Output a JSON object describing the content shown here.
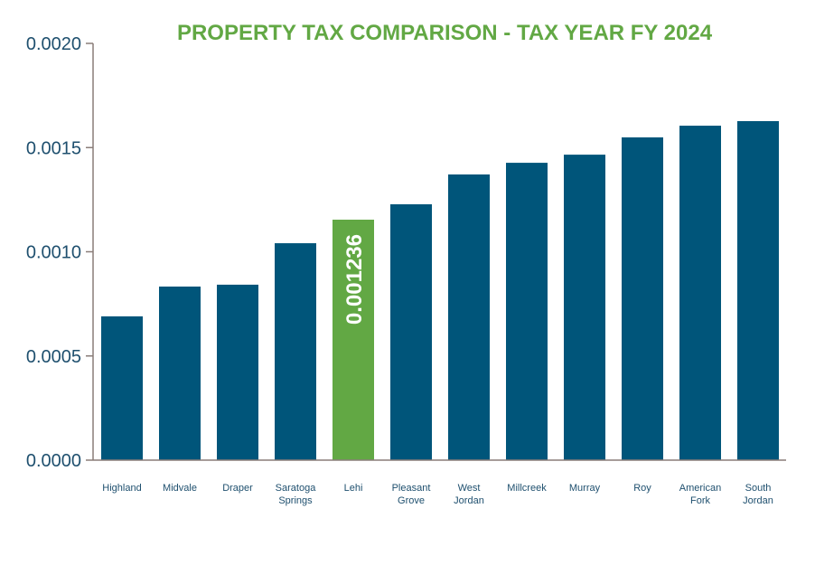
{
  "chart_data": {
    "type": "bar",
    "title": "PROPERTY TAX COMPARISON - TAX YEAR FY 2024",
    "xlabel": "",
    "ylabel": "",
    "ylim": [
      0,
      0.002
    ],
    "yticks": [
      "0.0000",
      "0.0005",
      "0.0010",
      "0.0015",
      "0.0020"
    ],
    "ytick_values": [
      0,
      0.0005,
      0.001,
      0.0015,
      0.002
    ],
    "grid": false,
    "categories": [
      [
        "Highland"
      ],
      [
        "Midvale"
      ],
      [
        "Draper"
      ],
      [
        "Saratoga",
        "Springs"
      ],
      [
        "Lehi"
      ],
      [
        "Pleasant",
        "Grove"
      ],
      [
        "West",
        "Jordan"
      ],
      [
        "Millcreek"
      ],
      [
        "Murray"
      ],
      [
        "Roy"
      ],
      [
        "American",
        "Fork"
      ],
      [
        "South",
        "Jordan"
      ]
    ],
    "values": [
      0.00069,
      0.000833,
      0.000842,
      0.001041,
      0.001154,
      0.001228,
      0.001371,
      0.001427,
      0.001466,
      0.001549,
      0.001605,
      0.001627
    ],
    "highlight_index": 4,
    "data_label": "0.001236",
    "colors": {
      "bar": "#00557a",
      "highlight": "#62a844",
      "title": "#62a844",
      "axis": "#8a7d78",
      "tick_text": "#1e4f6e"
    }
  }
}
